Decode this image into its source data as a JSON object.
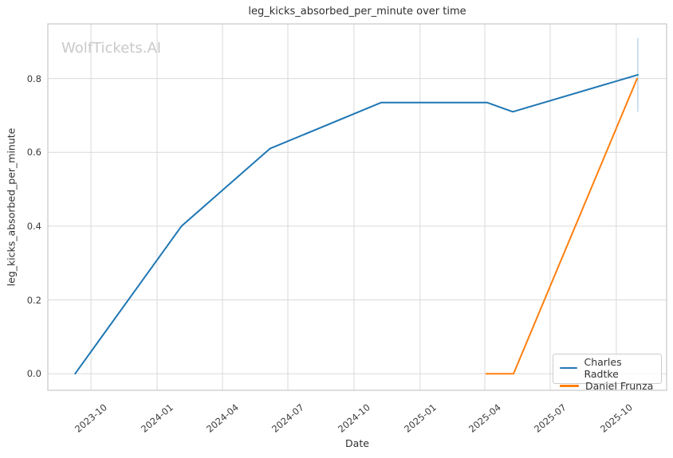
{
  "watermark": "WolfTickets.AI",
  "colors": {
    "grid": "#d9d9d9",
    "frame": "#c8c8c8",
    "error_bar": "#bcd8ec",
    "watermark": "#c9c9c9",
    "series_blue": "#1f77b4",
    "series_orange": "#ff7f0e"
  },
  "chart_data": {
    "type": "line",
    "title": "leg_kicks_absorbed_per_minute over time",
    "xlabel": "Date",
    "ylabel": "leg_kicks_absorbed_per_minute",
    "grid": true,
    "legend_position": "lower right",
    "xlim": [
      "2023-08-02",
      "2025-12-10"
    ],
    "ylim": [
      -0.045,
      0.948
    ],
    "x_ticks": [
      {
        "date": "2023-10-01",
        "label": "2023-10"
      },
      {
        "date": "2024-01-01",
        "label": "2024-01"
      },
      {
        "date": "2024-04-01",
        "label": "2024-04"
      },
      {
        "date": "2024-07-01",
        "label": "2024-07"
      },
      {
        "date": "2024-10-01",
        "label": "2024-10"
      },
      {
        "date": "2025-01-01",
        "label": "2025-01"
      },
      {
        "date": "2025-04-01",
        "label": "2025-04"
      },
      {
        "date": "2025-07-01",
        "label": "2025-07"
      },
      {
        "date": "2025-10-01",
        "label": "2025-10"
      }
    ],
    "y_ticks": [
      {
        "value": 0.0,
        "label": "0.0"
      },
      {
        "value": 0.2,
        "label": "0.2"
      },
      {
        "value": 0.4,
        "label": "0.4"
      },
      {
        "value": 0.6,
        "label": "0.6"
      },
      {
        "value": 0.8,
        "label": "0.8"
      }
    ],
    "series": [
      {
        "name": "Charles Radtke",
        "color": "#1f77b4",
        "points": [
          {
            "date": "2023-09-09",
            "value": 0.0
          },
          {
            "date": "2024-02-04",
            "value": 0.4
          },
          {
            "date": "2024-06-06",
            "value": 0.61
          },
          {
            "date": "2024-11-08",
            "value": 0.735
          },
          {
            "date": "2025-04-04",
            "value": 0.735
          },
          {
            "date": "2025-05-10",
            "value": 0.71
          },
          {
            "date": "2025-10-31",
            "value": 0.81
          }
        ],
        "error_bar": {
          "date": "2025-10-31",
          "low": 0.71,
          "high": 0.91
        }
      },
      {
        "name": "Daniel Frunza",
        "color": "#ff7f0e",
        "points": [
          {
            "date": "2025-04-03",
            "value": 0.0
          },
          {
            "date": "2025-05-11",
            "value": 0.0
          },
          {
            "date": "2025-10-30",
            "value": 0.8
          }
        ]
      }
    ]
  }
}
